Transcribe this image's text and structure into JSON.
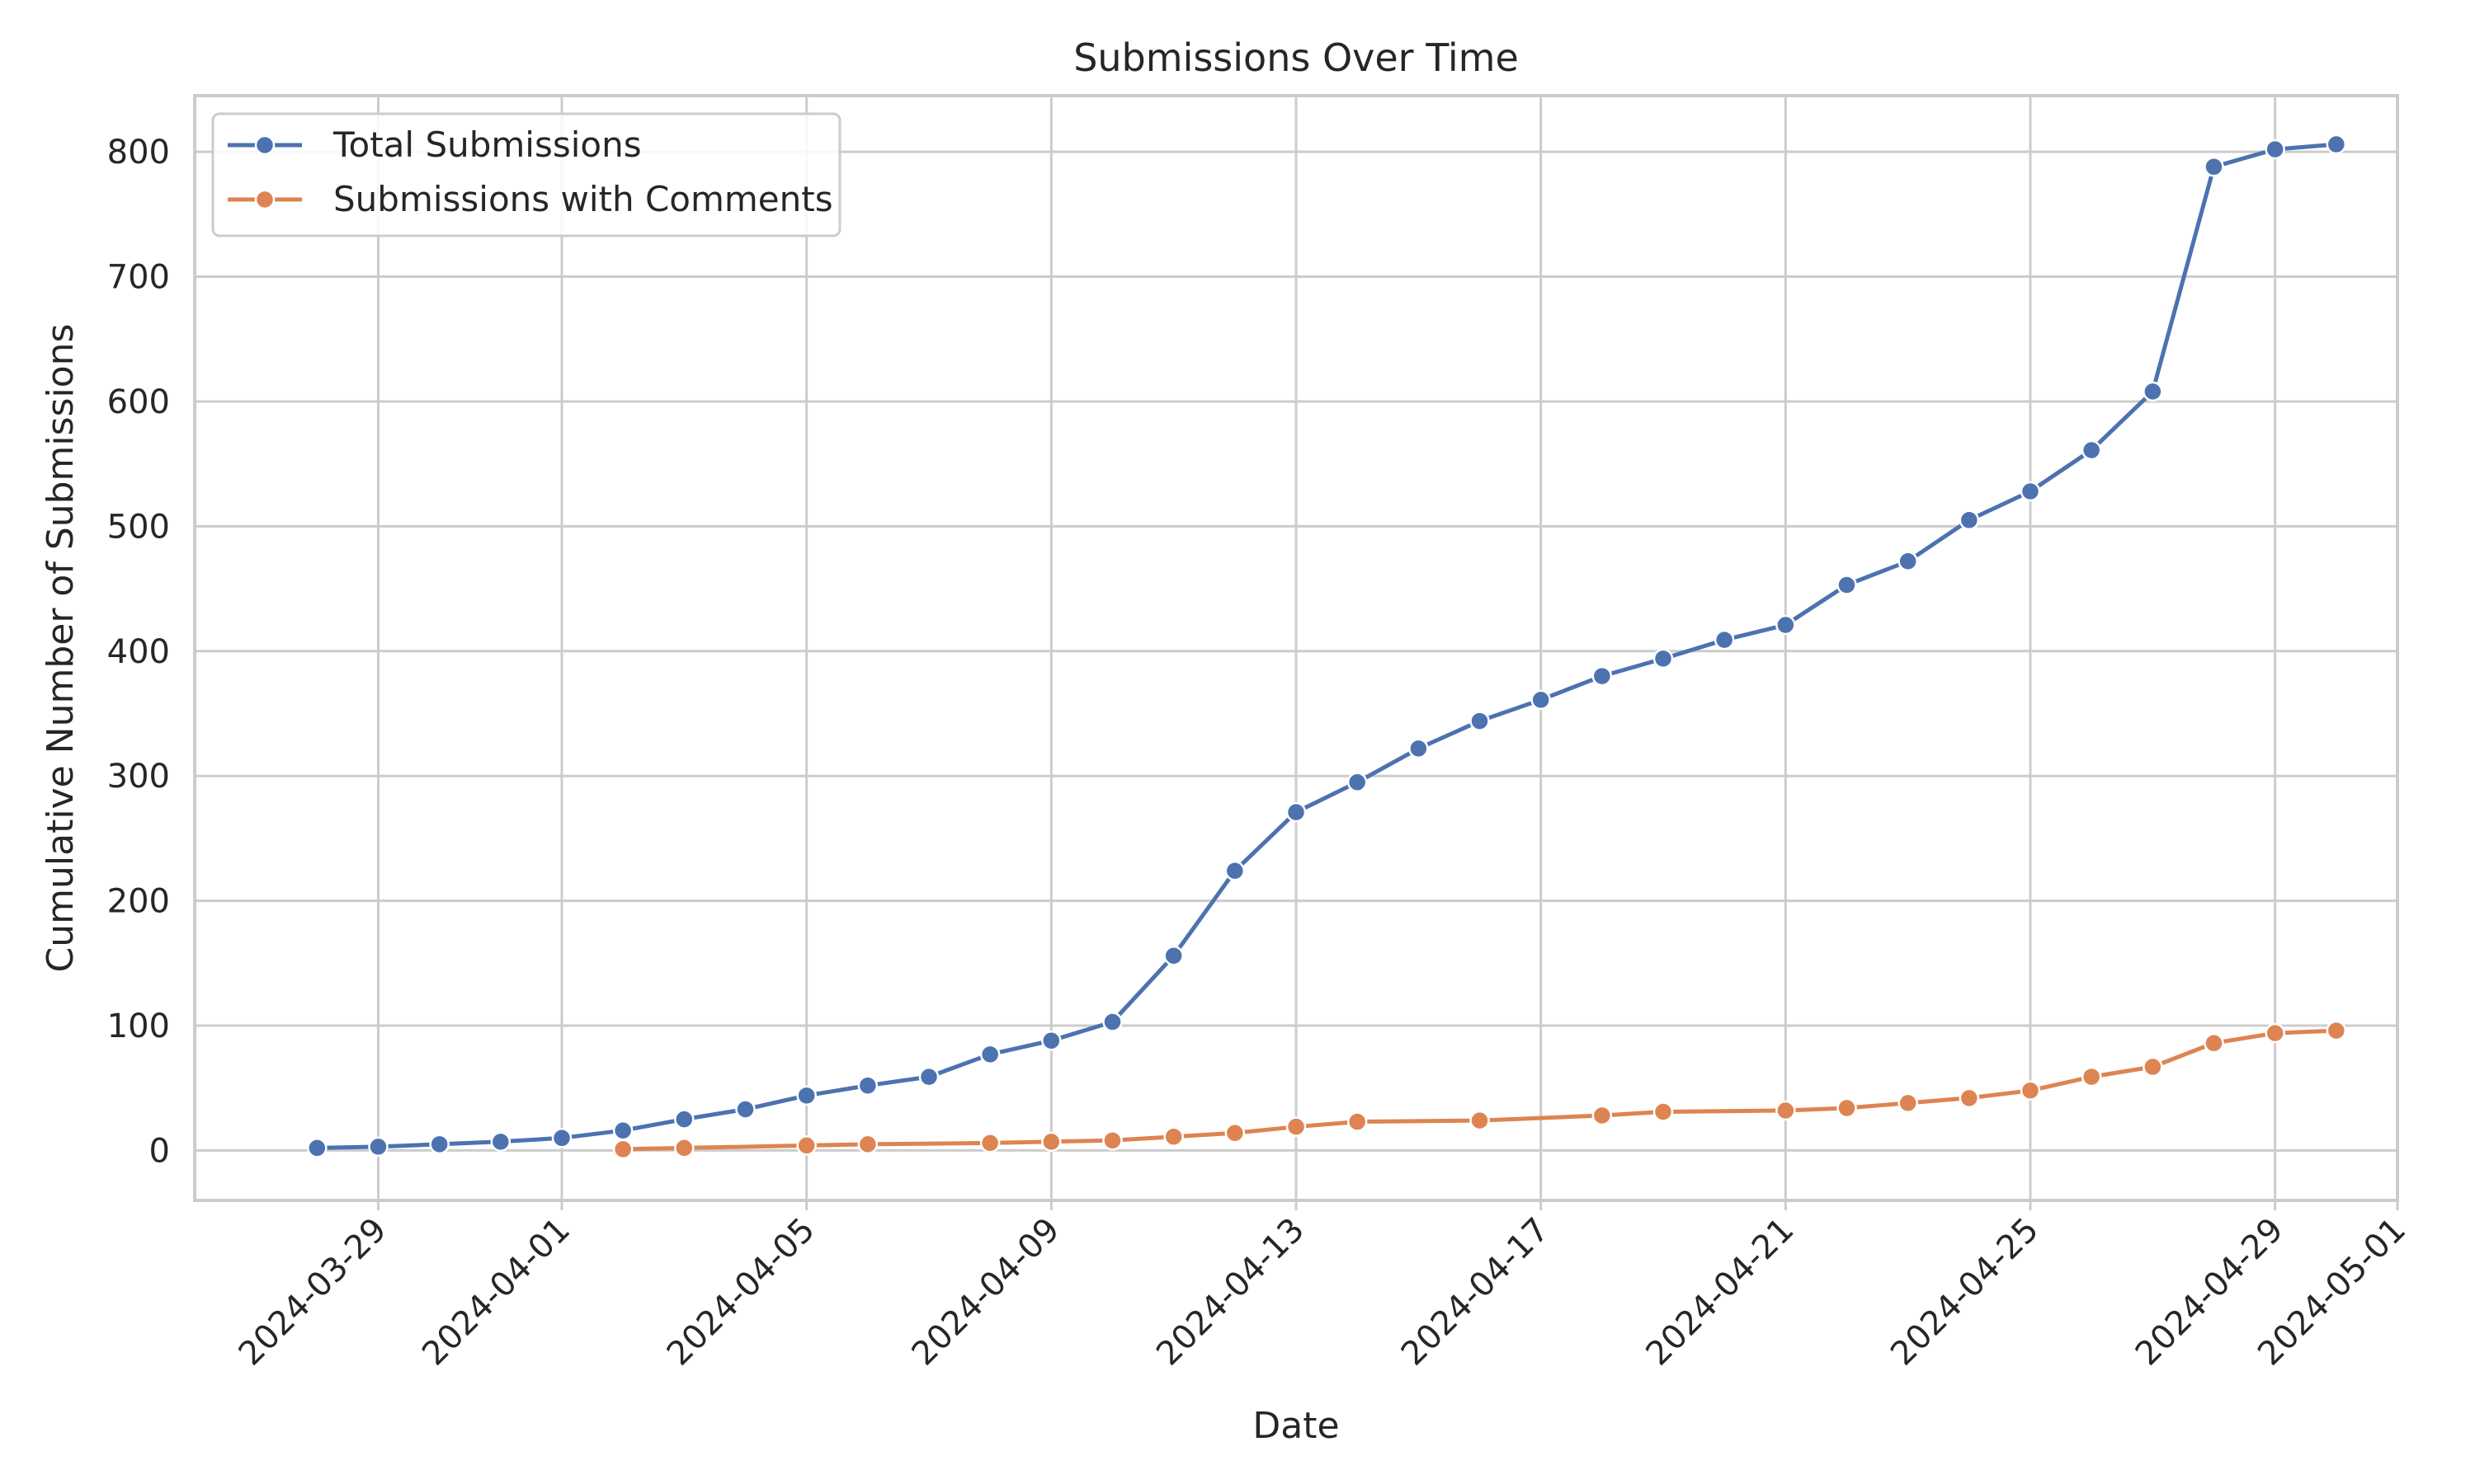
{
  "chart_data": {
    "type": "line",
    "title": "Submissions Over Time",
    "xlabel": "Date",
    "ylabel": "Cumulative Number of Submissions",
    "xlim": [
      "2024-03-26",
      "2024-05-01"
    ],
    "ylim": [
      -40,
      845
    ],
    "x_ticks": [
      "2024-03-29",
      "2024-04-01",
      "2024-04-05",
      "2024-04-09",
      "2024-04-13",
      "2024-04-17",
      "2024-04-21",
      "2024-04-25",
      "2024-04-29",
      "2024-05-01"
    ],
    "y_ticks": [
      0,
      100,
      200,
      300,
      400,
      500,
      600,
      700,
      800
    ],
    "grid": true,
    "legend_position": "top-left",
    "series": [
      {
        "name": "Total Submissions",
        "color": "#4c72b0",
        "points": [
          {
            "x": "2024-03-28",
            "y": 2
          },
          {
            "x": "2024-03-29",
            "y": 3
          },
          {
            "x": "2024-03-30",
            "y": 5
          },
          {
            "x": "2024-03-31",
            "y": 7
          },
          {
            "x": "2024-04-01",
            "y": 10
          },
          {
            "x": "2024-04-02",
            "y": 16
          },
          {
            "x": "2024-04-03",
            "y": 25
          },
          {
            "x": "2024-04-04",
            "y": 33
          },
          {
            "x": "2024-04-05",
            "y": 44
          },
          {
            "x": "2024-04-06",
            "y": 52
          },
          {
            "x": "2024-04-07",
            "y": 59
          },
          {
            "x": "2024-04-08",
            "y": 77
          },
          {
            "x": "2024-04-09",
            "y": 88
          },
          {
            "x": "2024-04-10",
            "y": 103
          },
          {
            "x": "2024-04-11",
            "y": 156
          },
          {
            "x": "2024-04-12",
            "y": 224
          },
          {
            "x": "2024-04-13",
            "y": 271
          },
          {
            "x": "2024-04-14",
            "y": 295
          },
          {
            "x": "2024-04-15",
            "y": 322
          },
          {
            "x": "2024-04-16",
            "y": 344
          },
          {
            "x": "2024-04-17",
            "y": 361
          },
          {
            "x": "2024-04-18",
            "y": 380
          },
          {
            "x": "2024-04-19",
            "y": 394
          },
          {
            "x": "2024-04-20",
            "y": 409
          },
          {
            "x": "2024-04-21",
            "y": 421
          },
          {
            "x": "2024-04-22",
            "y": 453
          },
          {
            "x": "2024-04-23",
            "y": 472
          },
          {
            "x": "2024-04-24",
            "y": 505
          },
          {
            "x": "2024-04-25",
            "y": 528
          },
          {
            "x": "2024-04-26",
            "y": 561
          },
          {
            "x": "2024-04-27",
            "y": 608
          },
          {
            "x": "2024-04-28",
            "y": 788
          },
          {
            "x": "2024-04-29",
            "y": 802
          },
          {
            "x": "2024-04-30",
            "y": 806
          }
        ]
      },
      {
        "name": "Submissions with Comments",
        "color": "#dd8452",
        "points": [
          {
            "x": "2024-04-02",
            "y": 1
          },
          {
            "x": "2024-04-03",
            "y": 2
          },
          {
            "x": "2024-04-05",
            "y": 4
          },
          {
            "x": "2024-04-06",
            "y": 5
          },
          {
            "x": "2024-04-08",
            "y": 6
          },
          {
            "x": "2024-04-09",
            "y": 7
          },
          {
            "x": "2024-04-10",
            "y": 8
          },
          {
            "x": "2024-04-11",
            "y": 11
          },
          {
            "x": "2024-04-12",
            "y": 14
          },
          {
            "x": "2024-04-13",
            "y": 19
          },
          {
            "x": "2024-04-14",
            "y": 23
          },
          {
            "x": "2024-04-16",
            "y": 24
          },
          {
            "x": "2024-04-18",
            "y": 28
          },
          {
            "x": "2024-04-19",
            "y": 31
          },
          {
            "x": "2024-04-21",
            "y": 32
          },
          {
            "x": "2024-04-22",
            "y": 34
          },
          {
            "x": "2024-04-23",
            "y": 38
          },
          {
            "x": "2024-04-24",
            "y": 42
          },
          {
            "x": "2024-04-25",
            "y": 48
          },
          {
            "x": "2024-04-26",
            "y": 59
          },
          {
            "x": "2024-04-27",
            "y": 67
          },
          {
            "x": "2024-04-28",
            "y": 86
          },
          {
            "x": "2024-04-29",
            "y": 94
          },
          {
            "x": "2024-04-30",
            "y": 96
          }
        ]
      }
    ]
  }
}
